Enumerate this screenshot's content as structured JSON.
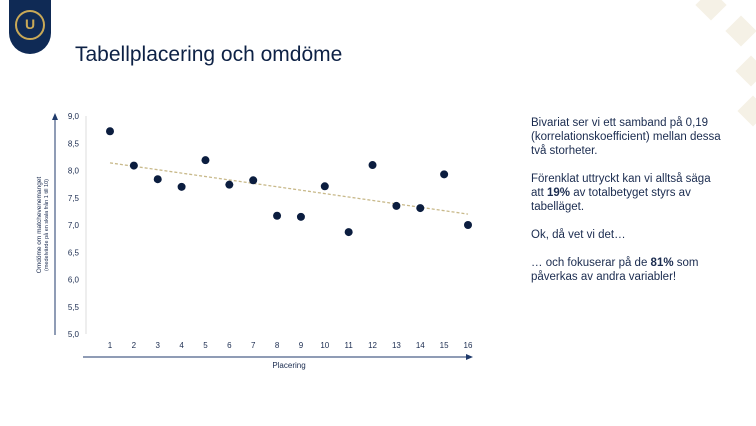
{
  "slide": {
    "title": "Tabellplacering och omdöme",
    "logo_text": "U"
  },
  "side_text": [
    {
      "parts": [
        "Bivariat ser vi ett samband på 0,19 (korrelationskoefficient) mellan dessa två storheter."
      ]
    },
    {
      "parts": [
        "Förenklat uttryckt kan vi alltså säga att ",
        "19%",
        " av totalbetyget styrs av tabelläget."
      ]
    },
    {
      "parts": [
        "Ok, då vet vi det…"
      ]
    },
    {
      "parts": [
        "… och fokuserar på de ",
        "81%",
        " som påverkas av andra variabler!"
      ]
    }
  ],
  "chart_data": {
    "type": "scatter",
    "title": "",
    "xlabel": "Placering",
    "ylabel": "Omdöme om matchevenemanget",
    "ylabel_sub": "(medelvärde på en skala från 1 till 10)",
    "x": [
      1,
      2,
      3,
      4,
      5,
      6,
      7,
      8,
      9,
      10,
      11,
      12,
      13,
      14,
      15,
      16
    ],
    "y": [
      8.72,
      8.09,
      7.84,
      7.7,
      8.19,
      7.74,
      7.82,
      7.17,
      7.15,
      7.71,
      6.87,
      8.1,
      7.35,
      7.31,
      7.93,
      7.0
    ],
    "ylim": [
      5.0,
      9.0
    ],
    "yticks": [
      "5,0",
      "5,5",
      "6,0",
      "6,5",
      "7,0",
      "7,5",
      "8,0",
      "8,5",
      "9,0"
    ],
    "xticks": [
      "1",
      "2",
      "3",
      "4",
      "5",
      "6",
      "7",
      "8",
      "9",
      "10",
      "11",
      "12",
      "13",
      "14",
      "15",
      "16"
    ],
    "trendline": {
      "x": [
        1,
        16
      ],
      "y": [
        8.14,
        7.2
      ]
    },
    "colors": {
      "point": "#0b1d3f",
      "trend": "#c8b98a",
      "axis": "#1f3a6b"
    },
    "grid": false
  }
}
